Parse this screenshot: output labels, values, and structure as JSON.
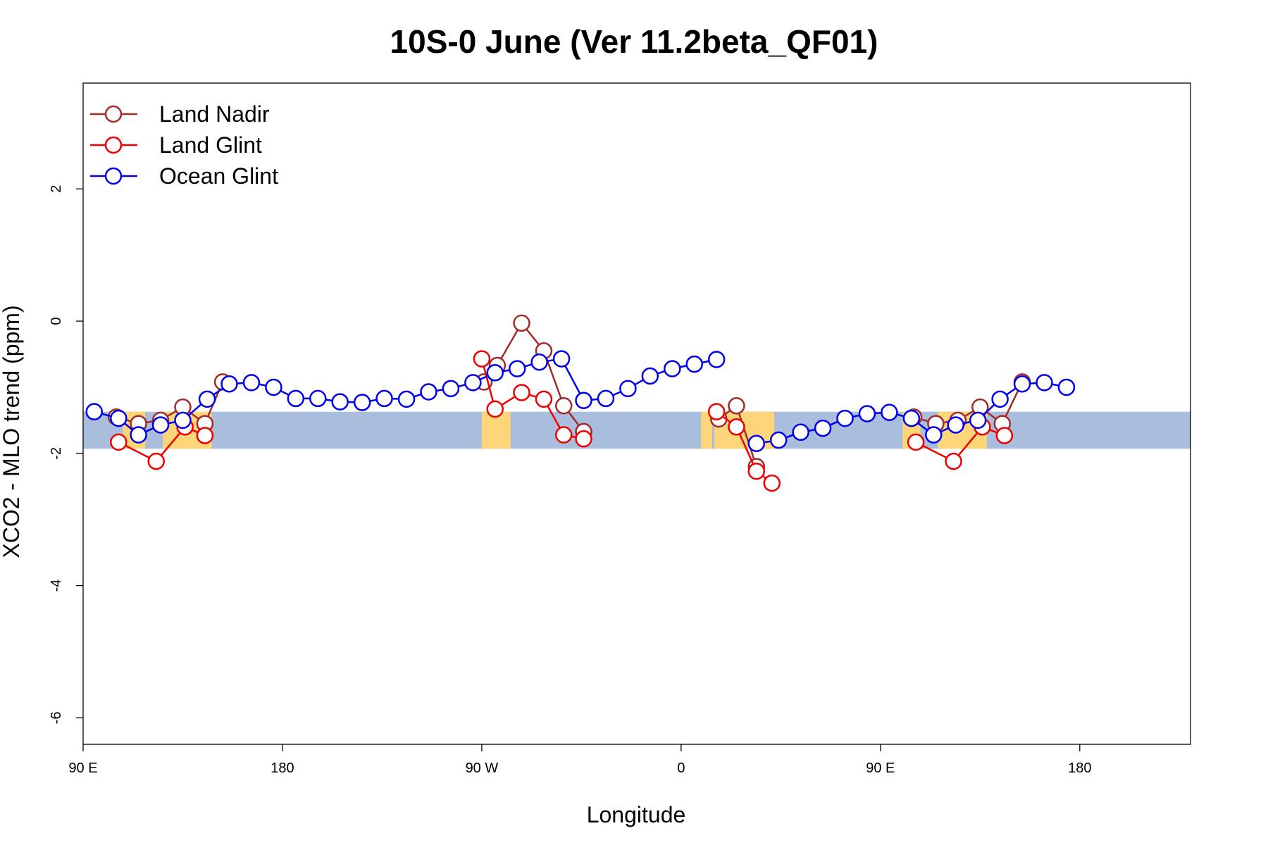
{
  "chart_data": {
    "type": "line",
    "title": "10S-0 June (Ver 11.2beta_QF01)",
    "xlabel": "Longitude",
    "ylabel": "XCO2 - MLO trend (ppm)",
    "xlim": [
      90,
      590
    ],
    "ylim": [
      -6.4,
      3.6
    ],
    "xticks": [
      {
        "value": 90,
        "label": "90 E"
      },
      {
        "value": 180,
        "label": "180"
      },
      {
        "value": 270,
        "label": "90 W"
      },
      {
        "value": 360,
        "label": "0"
      },
      {
        "value": 450,
        "label": "90 E"
      },
      {
        "value": 540,
        "label": "180"
      }
    ],
    "yticks": [
      {
        "value": 2,
        "label": "2"
      },
      {
        "value": 0,
        "label": "0"
      },
      {
        "value": -2,
        "label": "-2"
      },
      {
        "value": -4,
        "label": "-4"
      },
      {
        "value": -6,
        "label": "-6"
      }
    ],
    "legend_position": "top-left",
    "background_map": {
      "lat_band": "10S-0",
      "band_y_range": [
        -1.93,
        -1.37
      ],
      "ocean_color": "#a9bedc",
      "land_color": "#fdd67a",
      "land_x_ranges": [
        [
          108,
          118
        ],
        [
          126,
          148
        ],
        [
          270,
          283
        ],
        [
          369,
          374
        ],
        [
          375,
          402
        ],
        [
          460,
          468
        ],
        [
          476,
          498
        ]
      ]
    },
    "series": [
      {
        "name": "Land Nadir",
        "color": "#a52a2a",
        "segments": [
          [
            [
              105,
              -1.45
            ],
            [
              115,
              -1.55
            ],
            [
              125,
              -1.5
            ],
            [
              135,
              -1.3
            ],
            [
              145,
              -1.55
            ],
            [
              153,
              -0.92
            ]
          ],
          [
            [
              271,
              -0.92
            ],
            [
              277,
              -0.67
            ],
            [
              288,
              -0.03
            ],
            [
              298,
              -0.45
            ],
            [
              307,
              -1.28
            ],
            [
              316,
              -1.67
            ]
          ],
          [
            [
              377,
              -1.48
            ],
            [
              385,
              -1.28
            ],
            [
              394,
              -2.2
            ]
          ],
          [
            [
              465,
              -1.45
            ],
            [
              475,
              -1.55
            ],
            [
              485,
              -1.5
            ],
            [
              495,
              -1.3
            ],
            [
              505,
              -1.55
            ],
            [
              514,
              -0.92
            ]
          ]
        ]
      },
      {
        "name": "Land Glint",
        "color": "#ee0000",
        "segments": [
          [
            [
              106,
              -1.83
            ],
            [
              123,
              -2.12
            ],
            [
              136,
              -1.6
            ],
            [
              145,
              -1.73
            ]
          ],
          [
            [
              270,
              -0.57
            ],
            [
              276,
              -1.33
            ],
            [
              288,
              -1.08
            ],
            [
              298,
              -1.18
            ],
            [
              307,
              -1.72
            ],
            [
              316,
              -1.78
            ]
          ],
          [
            [
              376,
              -1.37
            ],
            [
              385,
              -1.6
            ],
            [
              394,
              -2.27
            ],
            [
              401,
              -2.45
            ]
          ],
          [
            [
              466,
              -1.83
            ],
            [
              483,
              -2.12
            ],
            [
              496,
              -1.6
            ],
            [
              506,
              -1.73
            ]
          ]
        ]
      },
      {
        "name": "Ocean Glint",
        "color": "#0000ee",
        "segments": [
          [
            [
              95,
              -1.37
            ],
            [
              106,
              -1.47
            ],
            [
              115,
              -1.72
            ],
            [
              125,
              -1.57
            ],
            [
              135,
              -1.5
            ],
            [
              146,
              -1.18
            ],
            [
              156,
              -0.95
            ],
            [
              166,
              -0.93
            ],
            [
              176,
              -1.0
            ],
            [
              186,
              -1.17
            ],
            [
              196,
              -1.17
            ],
            [
              206,
              -1.22
            ],
            [
              216,
              -1.23
            ],
            [
              226,
              -1.17
            ],
            [
              236,
              -1.18
            ],
            [
              246,
              -1.07
            ],
            [
              256,
              -1.02
            ],
            [
              266,
              -0.93
            ],
            [
              276,
              -0.78
            ],
            [
              286,
              -0.72
            ],
            [
              296,
              -0.62
            ],
            [
              306,
              -0.57
            ],
            [
              316,
              -1.2
            ],
            [
              326,
              -1.17
            ],
            [
              336,
              -1.02
            ],
            [
              346,
              -0.83
            ],
            [
              356,
              -0.72
            ],
            [
              366,
              -0.65
            ],
            [
              376,
              -0.58
            ]
          ],
          [
            [
              394,
              -1.85
            ],
            [
              404,
              -1.8
            ],
            [
              414,
              -1.68
            ],
            [
              424,
              -1.62
            ],
            [
              434,
              -1.47
            ],
            [
              444,
              -1.4
            ],
            [
              454,
              -1.38
            ],
            [
              464,
              -1.47
            ],
            [
              474,
              -1.72
            ],
            [
              484,
              -1.57
            ],
            [
              494,
              -1.5
            ],
            [
              504,
              -1.18
            ],
            [
              514,
              -0.95
            ],
            [
              524,
              -0.93
            ],
            [
              534,
              -1.0
            ]
          ]
        ]
      }
    ]
  }
}
